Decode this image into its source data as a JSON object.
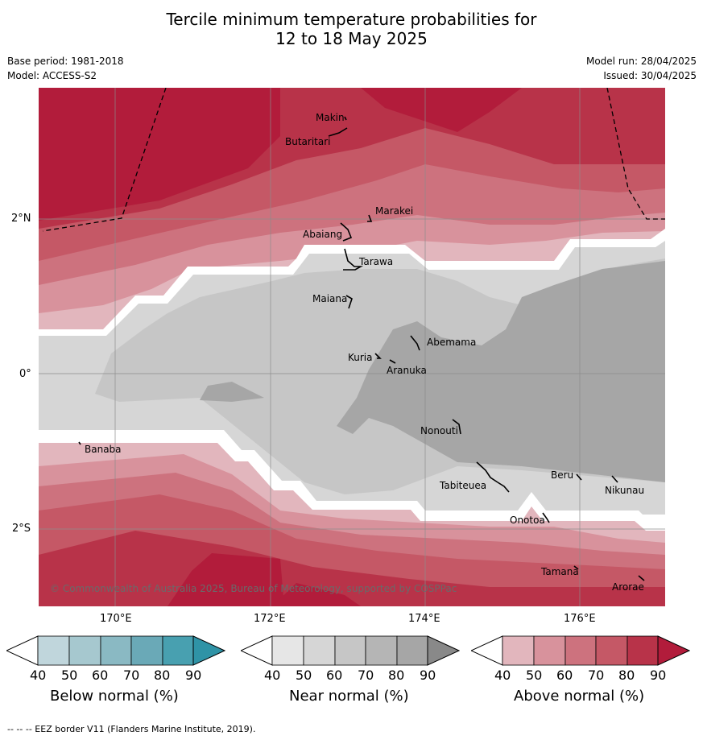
{
  "title_line1": "Tercile minimum temperature probabilities for",
  "title_line2": "12 to 18 May 2025",
  "meta": {
    "base_period": "Base period: 1981-2018",
    "model": "Model: ACCESS-S2",
    "model_run": "Model run: 28/04/2025",
    "issued": "Issued: 30/04/2025"
  },
  "lon_ticks": [
    "170°E",
    "172°E",
    "174°E",
    "176°E"
  ],
  "lat_ticks": [
    "2°N",
    "0°",
    "2°S"
  ],
  "places": [
    {
      "name": "Makin"
    },
    {
      "name": "Butaritari"
    },
    {
      "name": "Marakei"
    },
    {
      "name": "Abaiang"
    },
    {
      "name": "Tarawa"
    },
    {
      "name": "Maiana"
    },
    {
      "name": "Abemama"
    },
    {
      "name": "Kuria"
    },
    {
      "name": "Aranuka"
    },
    {
      "name": "Nonouti"
    },
    {
      "name": "Banaba"
    },
    {
      "name": "Beru"
    },
    {
      "name": "Nikunau"
    },
    {
      "name": "Tabiteuea"
    },
    {
      "name": "Onotoa"
    },
    {
      "name": "Tamana"
    },
    {
      "name": "Arorae"
    }
  ],
  "copyright": "© Commonwealth of Australia 2025, Bureau of Meteorology, supported by COSPPac",
  "colorbars": [
    {
      "title": "Below normal (%)",
      "ticks": [
        "40",
        "50",
        "60",
        "70",
        "80",
        "90"
      ],
      "colors": [
        "#ffffff",
        "#c0d6dc",
        "#a6c8cf",
        "#8ab9c3",
        "#6aa9b7",
        "#48a0b0",
        "#2f93a6"
      ]
    },
    {
      "title": "Near normal (%)",
      "ticks": [
        "40",
        "50",
        "60",
        "70",
        "80",
        "90"
      ],
      "colors": [
        "#ffffff",
        "#e6e6e6",
        "#d6d6d6",
        "#c6c6c6",
        "#b5b5b5",
        "#a6a6a6",
        "#898989"
      ]
    },
    {
      "title": "Above normal (%)",
      "ticks": [
        "40",
        "50",
        "60",
        "70",
        "80",
        "90"
      ],
      "colors": [
        "#ffffff",
        "#e2b6bd",
        "#d8929c",
        "#cd727e",
        "#c55866",
        "#b83349",
        "#b21c3b"
      ]
    }
  ],
  "footnote": "-- -- -- EEZ border V11 (Flanders Marine Institute, 2019)."
}
